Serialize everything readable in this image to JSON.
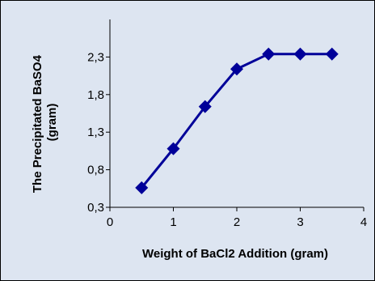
{
  "chart_data": {
    "type": "line",
    "title": "",
    "xlabel": "Weight of BaCl2 Addition (gram)",
    "ylabel_lines": [
      "The Precipitated BaSO4",
      "(gram)"
    ],
    "xlim": [
      0,
      4
    ],
    "ylim": [
      0.3,
      2.8
    ],
    "x_ticks": [
      0,
      1,
      2,
      3,
      4
    ],
    "x_tick_labels": [
      "0",
      "1",
      "2",
      "3",
      "4"
    ],
    "y_ticks": [
      0.3,
      0.8,
      1.3,
      1.8,
      2.3
    ],
    "y_tick_labels": [
      "0,3",
      "0,8",
      "1,3",
      "1,8",
      "2,3"
    ],
    "grid": false,
    "legend": "none",
    "series": [
      {
        "x": [
          0.5,
          1.0,
          1.5,
          2.0,
          2.5,
          3.0,
          3.5
        ],
        "values": [
          0.56,
          1.08,
          1.64,
          2.14,
          2.34,
          2.34,
          2.34
        ],
        "color": "#000099",
        "marker": "diamond"
      }
    ],
    "background_color": "#dde5f1"
  }
}
